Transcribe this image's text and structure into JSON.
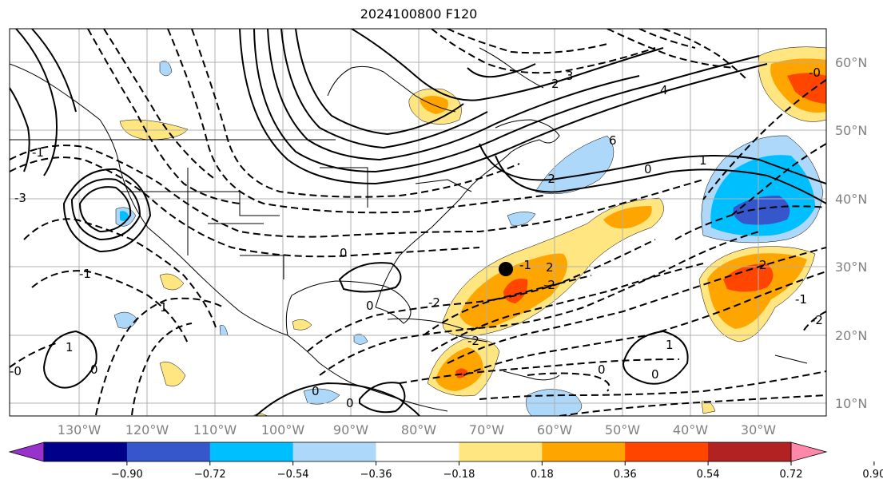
{
  "title": "2024100800 F120",
  "lat_labels": [
    "60°N",
    "50°N",
    "40°N",
    "30°N",
    "20°N",
    "10°N"
  ],
  "lon_labels": [
    "130°W",
    "120°W",
    "110°W",
    "100°W",
    "90°W",
    "80°W",
    "70°W",
    "60°W",
    "50°W",
    "40°W",
    "30°W"
  ],
  "colorbar": {
    "ticks": [
      "−0.90",
      "−0.72",
      "−0.54",
      "−0.36",
      "−0.18",
      "0.18",
      "0.36",
      "0.54",
      "0.72",
      "0.90"
    ],
    "colors": [
      "#9932cc",
      "#00008b",
      "#3657cb",
      "#00bfff",
      "#add8f9",
      "#ffffff",
      "#ffe680",
      "#ffa500",
      "#ff4500",
      "#b22222",
      "#ff88aa"
    ]
  },
  "contour_labels": [
    {
      "text": "4"
    },
    {
      "text": "6"
    },
    {
      "text": "0"
    },
    {
      "text": "3"
    },
    {
      "text": "2"
    },
    {
      "text": "1"
    },
    {
      "text": "-1"
    },
    {
      "text": "0"
    },
    {
      "text": "-3"
    },
    {
      "text": "-2"
    },
    {
      "text": "-1"
    },
    {
      "text": "0"
    },
    {
      "text": "1"
    },
    {
      "text": "-0"
    },
    {
      "text": "0"
    },
    {
      "text": "-1"
    },
    {
      "text": "2"
    },
    {
      "text": "1"
    },
    {
      "text": "-2"
    },
    {
      "text": "2"
    },
    {
      "text": "-2"
    },
    {
      "text": "-1"
    },
    {
      "text": "0"
    },
    {
      "text": "1"
    },
    {
      "text": "0"
    },
    {
      "text": "0"
    },
    {
      "text": "0"
    },
    {
      "text": "-2"
    },
    {
      "text": "-2"
    },
    {
      "text": "-0"
    }
  ]
}
